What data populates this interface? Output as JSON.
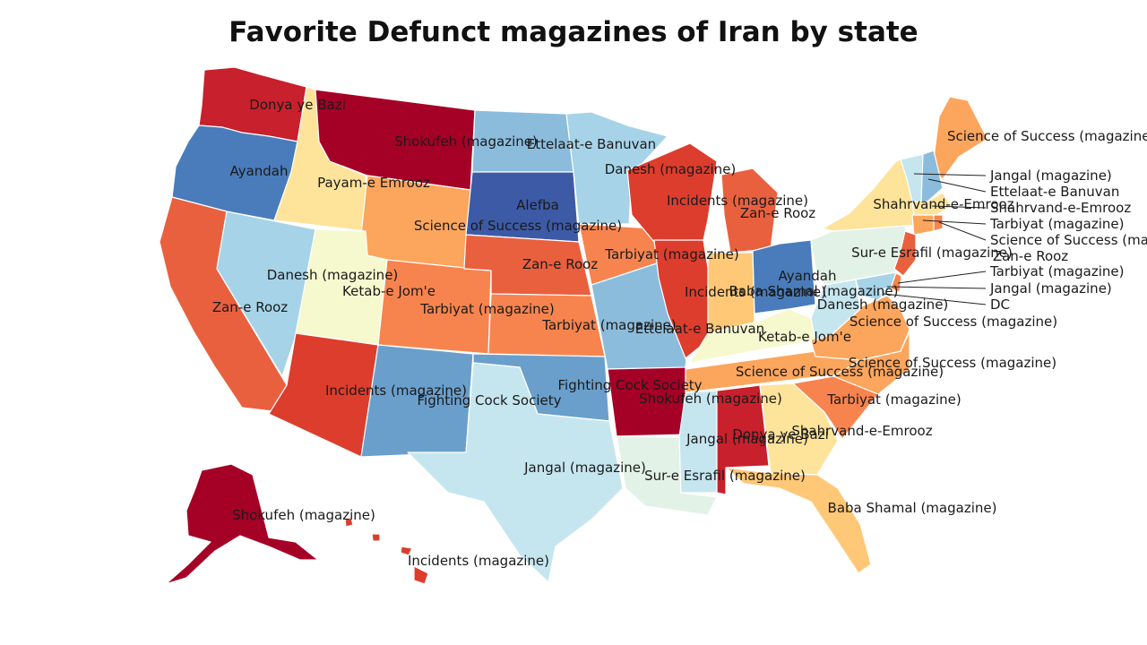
{
  "title": "Favorite Defunct magazines of Iran by state",
  "colors": {
    "dark_red": "#a50026",
    "red": "#c8202c",
    "red_orange": "#dd3d2d",
    "orange_red": "#e9603f",
    "orange": "#f7844e",
    "light_orange": "#fca55d",
    "pale_orange": "#fec877",
    "pale_yellow": "#fee39a",
    "cream": "#f6f8ce",
    "pale_green": "#e3f2e6",
    "pale_blue": "#c6e6ef",
    "light_blue": "#a6d3e8",
    "sky_blue": "#8cbcdb",
    "blue": "#6a9fcc",
    "mid_blue": "#4a7cbb",
    "dark_blue": "#3d5aa6"
  },
  "states": [
    {
      "id": "WA",
      "label": "Donya ye Bazi"
    },
    {
      "id": "OR",
      "label": "Ayandah"
    },
    {
      "id": "CA",
      "label": "Zan-e Rooz"
    },
    {
      "id": "ID",
      "label": "Payam-e Emrooz"
    },
    {
      "id": "NV",
      "label": "Danesh (magazine)"
    },
    {
      "id": "MT",
      "label": "Shokufeh (magazine)"
    },
    {
      "id": "WY",
      "label": "Science of Success (magazine)"
    },
    {
      "id": "UT",
      "label": "Ketab-e Jom'e"
    },
    {
      "id": "CO",
      "label": "Tarbiyat (magazine)"
    },
    {
      "id": "AZ",
      "label": "Incidents (magazine)"
    },
    {
      "id": "NM",
      "label": "Fighting Cock Society"
    },
    {
      "id": "ND",
      "label": "Ettelaat-e Banuvan"
    },
    {
      "id": "SD",
      "label": "Alefba"
    },
    {
      "id": "NE",
      "label": "Zan-e Rooz"
    },
    {
      "id": "KS",
      "label": "Tarbiyat (magazine)"
    },
    {
      "id": "OK",
      "label": "Fighting Cock Society"
    },
    {
      "id": "TX",
      "label": "Jangal (magazine)"
    },
    {
      "id": "MN",
      "label": "Danesh (magazine)"
    },
    {
      "id": "IA",
      "label": "Tarbiyat (magazine)"
    },
    {
      "id": "MO",
      "label": "Ettelaat-e Banuvan"
    },
    {
      "id": "AR",
      "label": "Shokufeh (magazine)"
    },
    {
      "id": "LA",
      "label": "Sur-e Esrafil (magazine)"
    },
    {
      "id": "WI",
      "label": "Incidents (magazine)"
    },
    {
      "id": "IL",
      "label": "Incidents (magazine)"
    },
    {
      "id": "MI",
      "label": "Zan-e Rooz"
    },
    {
      "id": "IN",
      "label": "Baba Shamal (magazine)"
    },
    {
      "id": "OH",
      "label": "Ayandah"
    },
    {
      "id": "KY",
      "label": "Ketab-e Jom'e"
    },
    {
      "id": "TN",
      "label": "Science of Success (magazine)"
    },
    {
      "id": "MS",
      "label": "Jangal (magazine)"
    },
    {
      "id": "AL",
      "label": "Donya ye Bazi"
    },
    {
      "id": "GA",
      "label": "Shahrvand-e-Emrooz"
    },
    {
      "id": "FL",
      "label": "Baba Shamal (magazine)"
    },
    {
      "id": "SC",
      "label": "Tarbiyat (magazine)"
    },
    {
      "id": "NC",
      "label": "Science of Success (magazine)"
    },
    {
      "id": "VA",
      "label": "Science of Success (magazine)"
    },
    {
      "id": "WV",
      "label": "Danesh (magazine)"
    },
    {
      "id": "PA",
      "label": "Sur-e Esrafil (magazine)"
    },
    {
      "id": "NY",
      "label": "Shahrvand-e-Emrooz"
    },
    {
      "id": "ME",
      "label": "Science of Success (magazine)"
    },
    {
      "id": "VT",
      "label": "Jangal (magazine)"
    },
    {
      "id": "NH",
      "label": "Ettelaat-e Banuvan"
    },
    {
      "id": "MA",
      "label": "Shahrvand-e-Emrooz"
    },
    {
      "id": "CT",
      "label": "Tarbiyat (magazine)"
    },
    {
      "id": "RI",
      "label": "Science of Success (magazine)"
    },
    {
      "id": "NJ",
      "label": "Zan-e Rooz"
    },
    {
      "id": "DE",
      "label": "Tarbiyat (magazine)"
    },
    {
      "id": "MD",
      "label": "Jangal (magazine)"
    },
    {
      "id": "DC",
      "label": "DC"
    },
    {
      "id": "AK",
      "label": "Shokufeh (magazine)"
    },
    {
      "id": "HI",
      "label": "Incidents (magazine)"
    }
  ]
}
